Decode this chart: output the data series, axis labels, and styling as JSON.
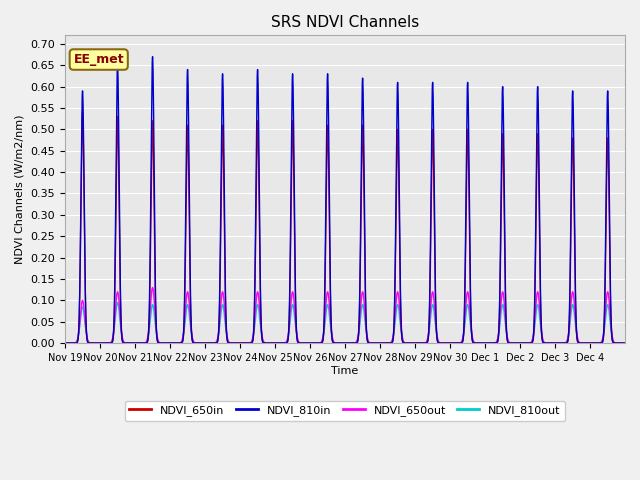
{
  "title": "SRS NDVI Channels",
  "ylabel": "NDVI Channels (W/m2/nm)",
  "xlabel": "Time",
  "ylim": [
    0.0,
    0.72
  ],
  "bg_color": "#e8e8e8",
  "annotation_text": "EE_met",
  "annotation_bg": "#ffffa0",
  "annotation_border": "#8B6914",
  "legend_entries": [
    "NDVI_650in",
    "NDVI_810in",
    "NDVI_650out",
    "NDVI_810out"
  ],
  "colors": [
    "#cc0000",
    "#0000cc",
    "#ff00ff",
    "#00cccc"
  ],
  "x_tick_labels": [
    "Nov 19",
    "Nov 20",
    "Nov 21",
    "Nov 22",
    "Nov 23",
    "Nov 24",
    "Nov 25",
    "Nov 26",
    "Nov 27",
    "Nov 28",
    "Nov 29",
    "Nov 30",
    "Dec 1",
    "Dec 2",
    "Dec 3",
    "Dec 4"
  ],
  "n_days": 16,
  "pts_per_day": 200,
  "peak_650in": [
    0.54,
    0.53,
    0.52,
    0.51,
    0.51,
    0.52,
    0.52,
    0.51,
    0.51,
    0.5,
    0.5,
    0.5,
    0.49,
    0.49,
    0.48,
    0.48
  ],
  "peak_810in": [
    0.59,
    0.65,
    0.67,
    0.64,
    0.63,
    0.64,
    0.63,
    0.63,
    0.62,
    0.61,
    0.61,
    0.61,
    0.6,
    0.6,
    0.59,
    0.59
  ],
  "peak_650out": [
    0.1,
    0.12,
    0.13,
    0.12,
    0.12,
    0.12,
    0.12,
    0.12,
    0.12,
    0.12,
    0.12,
    0.12,
    0.12,
    0.12,
    0.12,
    0.12
  ],
  "peak_810out": [
    0.085,
    0.095,
    0.09,
    0.09,
    0.09,
    0.09,
    0.09,
    0.09,
    0.09,
    0.09,
    0.09,
    0.09,
    0.09,
    0.09,
    0.09,
    0.09
  ],
  "spike_sigma_in": 0.045,
  "spike_sigma_out": 0.065,
  "baseline": 0.0
}
